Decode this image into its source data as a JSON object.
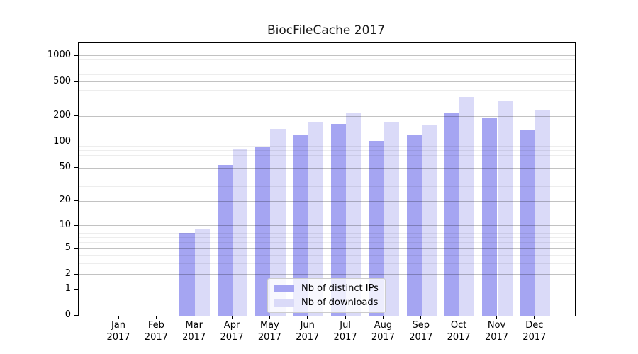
{
  "title": "BiocFileCache 2017",
  "chart_data": {
    "type": "bar",
    "title": "BiocFileCache 2017",
    "categories": [
      "Jan 2017",
      "Feb 2017",
      "Mar 2017",
      "Apr 2017",
      "May 2017",
      "Jun 2017",
      "Jul 2017",
      "Aug 2017",
      "Sep 2017",
      "Oct 2017",
      "Nov 2017",
      "Dec 2017"
    ],
    "series": [
      {
        "name": "Nb of distinct IPs",
        "color": "#a5a5f2",
        "values": [
          0,
          0,
          8,
          54,
          88,
          123,
          163,
          103,
          120,
          220,
          191,
          141
        ]
      },
      {
        "name": "Nb of downloads",
        "color": "#dadaf8",
        "values": [
          0,
          0,
          9,
          84,
          143,
          174,
          222,
          171,
          161,
          335,
          301,
          239
        ]
      }
    ],
    "xlabel": "",
    "ylabel": "",
    "yscale": "log1p",
    "ylim": [
      0,
      1400
    ],
    "yticks": [
      0,
      1,
      2,
      5,
      10,
      20,
      50,
      100,
      200,
      500,
      1000
    ],
    "minor_gridlines": [
      3,
      4,
      6,
      7,
      8,
      9,
      30,
      40,
      60,
      70,
      80,
      90,
      300,
      400,
      600,
      700,
      800,
      900
    ],
    "grid": true,
    "legend_position": "lower-center"
  }
}
